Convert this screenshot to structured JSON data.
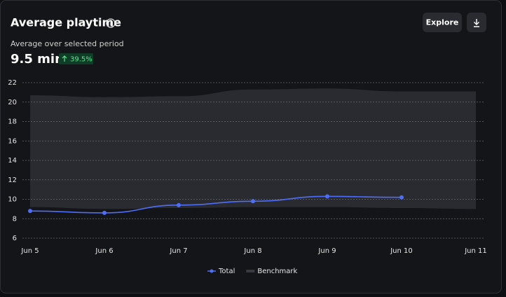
{
  "chart_data": {
    "type": "line",
    "title": "Average playtime",
    "subtitle": "Average over selected period",
    "summary_value": "9.5 min",
    "change": "39.5%",
    "buttons": [
      "Explore"
    ],
    "categories": [
      "Jun 5",
      "Jun 6",
      "Jun 7",
      "Jun 8",
      "Jun 9",
      "Jun 10",
      "Jun 11"
    ],
    "series": [
      {
        "name": "Total",
        "color": "#4f6ef7",
        "values": [
          8.8,
          8.6,
          9.4,
          9.8,
          10.3,
          10.2,
          null
        ]
      },
      {
        "name": "Benchmark",
        "color": "#2a2b30",
        "lower": [
          9.2,
          9.0,
          9.1,
          9.2,
          9.2,
          9.1,
          9.0
        ],
        "upper": [
          20.7,
          20.5,
          20.6,
          21.3,
          21.4,
          21.1,
          21.1
        ]
      }
    ],
    "ylim": [
      6,
      22
    ],
    "yticks": [
      6,
      8,
      10,
      12,
      14,
      16,
      18,
      20,
      22
    ],
    "grid": true,
    "legend": "bottom"
  }
}
